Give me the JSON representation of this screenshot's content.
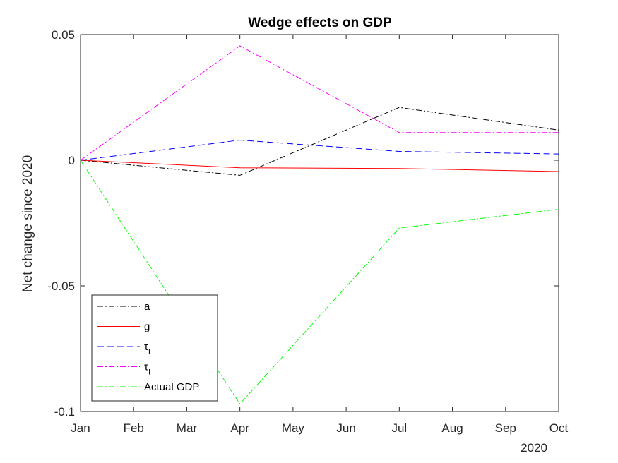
{
  "chart_data": {
    "type": "line",
    "title": "Wedge effects on GDP",
    "ylabel": "Net change since 2020",
    "xlabel": "",
    "x_year_label": "2020",
    "x_ticks": [
      "Jan",
      "Feb",
      "Mar",
      "Apr",
      "May",
      "Jun",
      "Jul",
      "Aug",
      "Sep",
      "Oct"
    ],
    "x_points": [
      "Jan",
      "Apr",
      "Jul",
      "Oct"
    ],
    "ylim": [
      -0.1,
      0.05
    ],
    "y_ticks": [
      -0.1,
      -0.05,
      0,
      0.05
    ],
    "y_tick_labels": [
      "-0.1",
      "-0.05",
      "0",
      "0.05"
    ],
    "grid": false,
    "legend_position": "bottom-left",
    "series": [
      {
        "name": "a",
        "sub": "",
        "color": "#000000",
        "dash": "8,3,2,3",
        "values": [
          0,
          -0.006,
          0.021,
          0.012
        ]
      },
      {
        "name": "g",
        "sub": "",
        "color": "#ff0000",
        "dash": "",
        "values": [
          0,
          -0.003,
          -0.0033,
          -0.0045
        ]
      },
      {
        "name": "τ",
        "sub": "L",
        "color": "#0000ff",
        "dash": "9,5",
        "values": [
          0,
          0.008,
          0.0035,
          0.0025
        ]
      },
      {
        "name": "τ",
        "sub": "I",
        "color": "#ff00ff",
        "dash": "8,3,2,3",
        "values": [
          0,
          0.0455,
          0.011,
          0.011
        ]
      },
      {
        "name": "Actual GDP",
        "sub": "",
        "color": "#00ff00",
        "dash": "8,3,2,3",
        "values": [
          0,
          -0.097,
          -0.027,
          -0.0195
        ]
      }
    ]
  }
}
